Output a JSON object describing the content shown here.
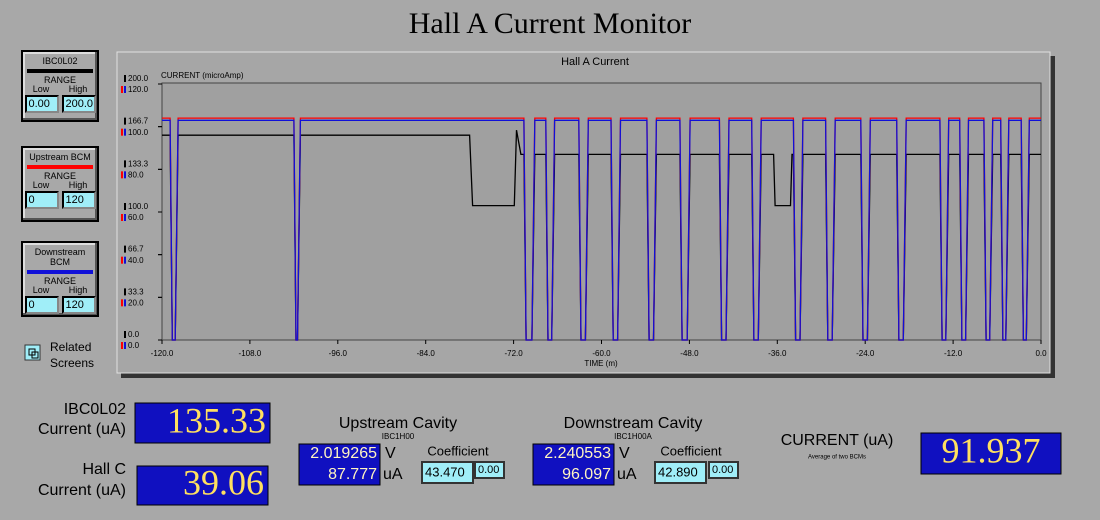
{
  "header": {
    "title": "Hall A Current Monitor"
  },
  "panels": [
    {
      "range_label": "RANGE",
      "low_label": "Low",
      "high_label": "High",
      "low": "0.00",
      "high": "200.0"
    },
    {
      "range_label": "RANGE",
      "low_label": "Low",
      "high_label": "High",
      "low": "0",
      "high": "120"
    },
    {
      "range_label": "RANGE",
      "low_label": "Low",
      "high_label": "High",
      "low": "0",
      "high": "120"
    }
  ],
  "related_screens": [
    "Related",
    "Screens"
  ],
  "readouts": {
    "ibc": {
      "label": [
        "IBC0L02",
        "Current (uA)"
      ],
      "value": "135.33"
    },
    "hallc": {
      "label": [
        "Hall C",
        "Current (uA)"
      ],
      "value": "39.06"
    },
    "upstream": {
      "title": "Upstream Cavity",
      "device": "IBC1H00",
      "voltage": "2.019265",
      "voltage_unit": "V",
      "current": "87.777",
      "current_unit": "uA",
      "coefficient_label": "Coefficient",
      "coefficient": "43.470",
      "offset": "0.00"
    },
    "downstream": {
      "title": "Downstream Cavity",
      "device": "IBC1H00A",
      "voltage": "2.240553",
      "voltage_unit": "V",
      "current": "96.097",
      "current_unit": "uA",
      "coefficient_label": "Coefficient",
      "coefficient": "42.890",
      "offset": "0.00"
    },
    "average": {
      "label": "CURRENT (uA)",
      "sublabel": "Average of two BCMs",
      "value": "91.937"
    }
  },
  "chart_data": {
    "type": "line",
    "title": "Hall A Current",
    "ylabel": "CURRENT (microAmp)",
    "xlabel": "TIME (m)",
    "xlim": [
      -120,
      0
    ],
    "xticks": [
      {
        "value": -120,
        "label": "-120.0"
      },
      {
        "value": -108,
        "label": "-108.0"
      },
      {
        "value": -96,
        "label": "-96.0"
      },
      {
        "value": -84,
        "label": "-84.0"
      },
      {
        "value": -72,
        "label": "-72.0"
      },
      {
        "value": -60,
        "label": "-60.0"
      },
      {
        "value": -48,
        "label": "-48.0"
      },
      {
        "value": -36,
        "label": "-36.0"
      },
      {
        "value": -24,
        "label": "-24.0"
      },
      {
        "value": -12,
        "label": "-12.0"
      },
      {
        "value": 0,
        "label": "0.0"
      }
    ],
    "ylim": [
      0,
      120
    ],
    "yticks": [
      {
        "value": 0,
        "label": "0.0"
      },
      {
        "value": 20,
        "label": "20.0"
      },
      {
        "value": 40,
        "label": "40.0"
      },
      {
        "value": 60,
        "label": "60.0"
      },
      {
        "value": 80,
        "label": "80.0"
      },
      {
        "value": 100,
        "label": "100.0"
      },
      {
        "value": 120,
        "label": "120.0"
      }
    ],
    "y2lim": [
      0,
      200
    ],
    "y2ticks": [
      {
        "value": 0,
        "label": "0.0"
      },
      {
        "value": 33.3,
        "label": "33.3"
      },
      {
        "value": 66.7,
        "label": "66.7"
      },
      {
        "value": 100,
        "label": "100.0"
      },
      {
        "value": 133.3,
        "label": "133.3"
      },
      {
        "value": 166.7,
        "label": "166.7"
      },
      {
        "value": 200,
        "label": "200.0"
      }
    ],
    "x": [
      -120,
      -118.9,
      -118.6,
      -118.2,
      -117.8,
      -102.0,
      -101.7,
      -101.5,
      -101.1,
      -78.0,
      -77.6,
      -71.9,
      -71.6,
      -71.0,
      -70.6,
      -70.3,
      -69.5,
      -69.1,
      -67.6,
      -67.3,
      -66.8,
      -66.4,
      -63.1,
      -62.8,
      -62.2,
      -61.8,
      -58.7,
      -58.4,
      -57.8,
      -57.4,
      -53.8,
      -53.5,
      -52.9,
      -52.5,
      -49.3,
      -49.0,
      -48.3,
      -47.9,
      -43.9,
      -43.6,
      -43.0,
      -42.6,
      -39.5,
      -39.2,
      -38.6,
      -38.2,
      -36.5,
      -36.3,
      -34.2,
      -34.0,
      -33.8,
      -33.5,
      -32.9,
      -32.5,
      -29.4,
      -29.1,
      -28.5,
      -28.1,
      -24.6,
      -24.3,
      -23.7,
      -23.3,
      -19.7,
      -19.4,
      -18.8,
      -18.4,
      -13.8,
      -13.5,
      -13.0,
      -12.6,
      -11.1,
      -10.8,
      -10.3,
      -9.9,
      -7.8,
      -7.5,
      -7.0,
      -6.6,
      -5.5,
      -5.2,
      -4.8,
      -4.4,
      -2.7,
      -2.4,
      -2.0,
      -1.6,
      0
    ],
    "series": [
      {
        "name": "IBC0L02",
        "color": "#000000",
        "axis": "y2",
        "values": [
          160,
          160,
          0,
          0,
          160,
          160,
          0,
          0,
          160,
          160,
          105,
          105,
          164,
          145,
          145,
          0,
          0,
          145,
          145,
          0,
          0,
          145,
          145,
          0,
          0,
          145,
          145,
          0,
          0,
          145,
          145,
          0,
          0,
          145,
          145,
          0,
          0,
          145,
          145,
          0,
          0,
          145,
          145,
          0,
          0,
          145,
          145,
          105,
          105,
          145,
          145,
          0,
          0,
          145,
          145,
          0,
          0,
          145,
          145,
          0,
          0,
          145,
          145,
          0,
          0,
          145,
          145,
          0,
          0,
          145,
          145,
          0,
          0,
          145,
          145,
          0,
          0,
          145,
          145,
          0,
          0,
          145,
          145,
          0,
          0,
          145,
          145
        ]
      },
      {
        "name": "Upstream BCM",
        "color": "#ff0000",
        "values": [
          104,
          104,
          0,
          0,
          104,
          104,
          0,
          0,
          104,
          104,
          104,
          104,
          104,
          104,
          104,
          0,
          0,
          104,
          104,
          0,
          0,
          104,
          104,
          0,
          0,
          104,
          104,
          0,
          0,
          104,
          104,
          0,
          0,
          104,
          104,
          0,
          0,
          104,
          104,
          0,
          0,
          104,
          104,
          0,
          0,
          104,
          104,
          104,
          104,
          104,
          104,
          0,
          0,
          104,
          104,
          0,
          0,
          104,
          104,
          0,
          0,
          104,
          104,
          0,
          0,
          104,
          104,
          0,
          0,
          104,
          104,
          0,
          0,
          104,
          104,
          0,
          0,
          104,
          104,
          0,
          0,
          104,
          104,
          0,
          0,
          104,
          104
        ]
      },
      {
        "name": "Downstream BCM",
        "color": "#1010d8",
        "values": [
          103,
          103,
          0,
          0,
          103,
          103,
          0,
          0,
          103,
          103,
          103,
          103,
          103,
          103,
          103,
          0,
          0,
          103,
          103,
          0,
          0,
          103,
          103,
          0,
          0,
          103,
          103,
          0,
          0,
          103,
          103,
          0,
          0,
          103,
          103,
          0,
          0,
          103,
          103,
          0,
          0,
          103,
          103,
          0,
          0,
          103,
          103,
          103,
          103,
          103,
          103,
          0,
          0,
          103,
          103,
          0,
          0,
          103,
          103,
          0,
          0,
          103,
          103,
          0,
          0,
          103,
          103,
          0,
          0,
          103,
          103,
          0,
          0,
          103,
          103,
          0,
          0,
          103,
          103,
          0,
          0,
          103,
          103,
          0,
          0,
          103,
          103
        ]
      }
    ]
  }
}
